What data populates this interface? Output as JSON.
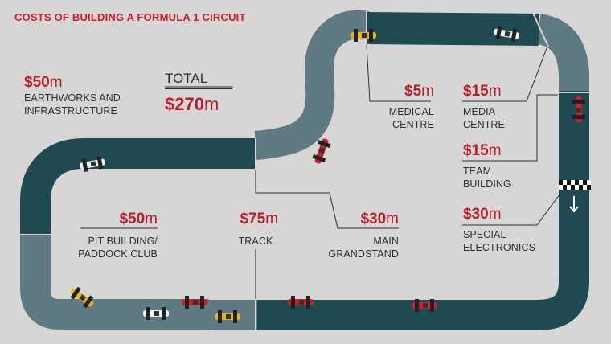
{
  "title": "COSTS OF BUILDING A FORMULA 1 CIRCUIT",
  "total": {
    "label": "TOTAL",
    "amount": "$270",
    "unit": "m"
  },
  "items": {
    "earthworks": {
      "amount": "$50",
      "unit": "m",
      "line1": "EARTHWORKS AND",
      "line2": "INFRASTRUCTURE"
    },
    "medical": {
      "amount": "$5",
      "unit": "m",
      "line1": "MEDICAL",
      "line2": "CENTRE"
    },
    "media": {
      "amount": "$15",
      "unit": "m",
      "line1": "MEDIA",
      "line2": "CENTRE"
    },
    "team": {
      "amount": "$15",
      "unit": "m",
      "line1": "TEAM",
      "line2": "BUILDING"
    },
    "electronics": {
      "amount": "$30",
      "unit": "m",
      "line1": "SPECIAL",
      "line2": "ELECTRONICS"
    },
    "pit": {
      "amount": "$50",
      "unit": "m",
      "line1": "PIT BUILDING/",
      "line2": "PADDOCK CLUB"
    },
    "track": {
      "amount": "$75",
      "unit": "m",
      "line1": "TRACK"
    },
    "grandstand": {
      "amount": "$30",
      "unit": "m",
      "line1": "MAIN",
      "line2": "GRANDSTAND"
    }
  },
  "colors": {
    "background": "#d7d6d4",
    "track_dark": "#1f4a51",
    "track_light": "#5f7a83",
    "accent_red": "#b51f2e",
    "car_red": "#c8202f",
    "car_yellow": "#e8b323",
    "car_white": "#f2f2f2"
  }
}
